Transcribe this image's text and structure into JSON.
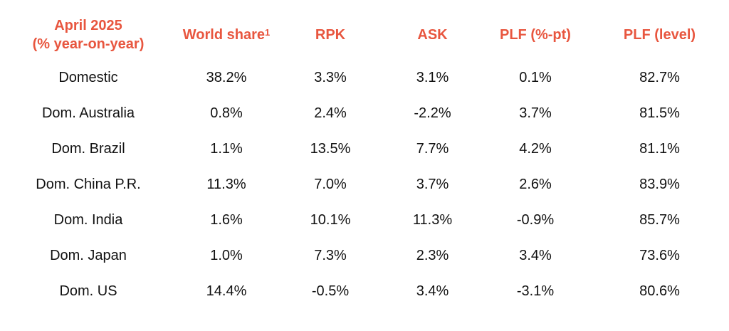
{
  "header": {
    "title_line1": "April 2025",
    "title_line2": "(% year-on-year)",
    "world_share": "World share",
    "world_share_footnote": "1",
    "rpk": "RPK",
    "ask": "ASK",
    "plf_pt": "PLF (%-pt)",
    "plf_level": "PLF (level)"
  },
  "rows": [
    {
      "market": "Domestic",
      "world_share": "38.2%",
      "rpk": "3.3%",
      "ask": "3.1%",
      "plf_pt": "0.1%",
      "plf_level": "82.7%"
    },
    {
      "market": "Dom. Australia",
      "world_share": "0.8%",
      "rpk": "2.4%",
      "ask": "-2.2%",
      "plf_pt": "3.7%",
      "plf_level": "81.5%"
    },
    {
      "market": "Dom. Brazil",
      "world_share": "1.1%",
      "rpk": "13.5%",
      "ask": "7.7%",
      "plf_pt": "4.2%",
      "plf_level": "81.1%"
    },
    {
      "market": "Dom. China P.R.",
      "world_share": "11.3%",
      "rpk": "7.0%",
      "ask": "3.7%",
      "plf_pt": "2.6%",
      "plf_level": "83.9%"
    },
    {
      "market": "Dom. India",
      "world_share": "1.6%",
      "rpk": "10.1%",
      "ask": "11.3%",
      "plf_pt": "-0.9%",
      "plf_level": "85.7%"
    },
    {
      "market": "Dom. Japan",
      "world_share": "1.0%",
      "rpk": "7.3%",
      "ask": "2.3%",
      "plf_pt": "3.4%",
      "plf_level": "73.6%"
    },
    {
      "market": "Dom. US",
      "world_share": "14.4%",
      "rpk": "-0.5%",
      "ask": "3.4%",
      "plf_pt": "-3.1%",
      "plf_level": "80.6%"
    }
  ],
  "colors": {
    "header_accent": "#e8563f",
    "body_text": "#111111"
  }
}
